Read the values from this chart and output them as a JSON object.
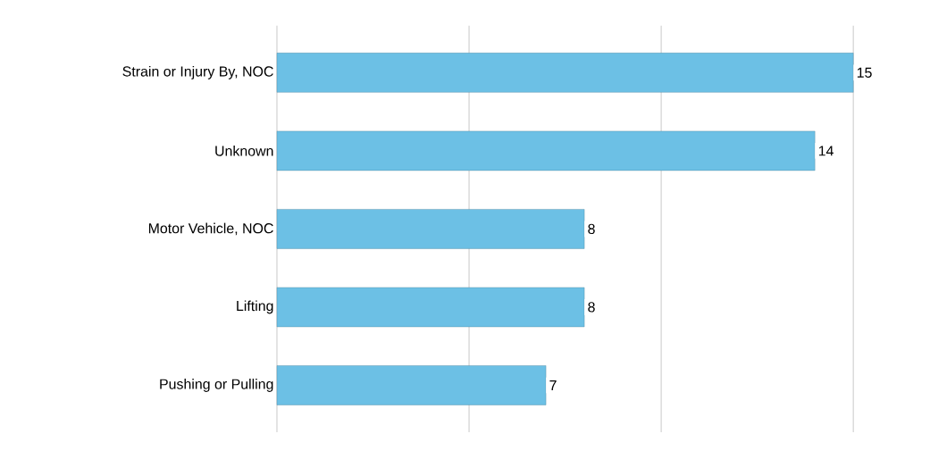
{
  "chart_data": {
    "type": "bar",
    "orientation": "horizontal",
    "categories": [
      "Strain or Injury By, NOC",
      "Unknown",
      "Motor Vehicle, NOC",
      "Lifting",
      "Pushing or Pulling"
    ],
    "values": [
      15,
      14,
      8,
      8,
      7
    ],
    "color": "#6cc0e5",
    "data_labels": true,
    "grid": "x",
    "xlim": [
      0,
      15
    ],
    "xticks": [
      {
        "value": 0,
        "label": null
      },
      {
        "value": 5,
        "label": null
      },
      {
        "value": 10,
        "label": null
      },
      {
        "value": 15,
        "label": null
      }
    ],
    "tick_labels": "y"
  }
}
